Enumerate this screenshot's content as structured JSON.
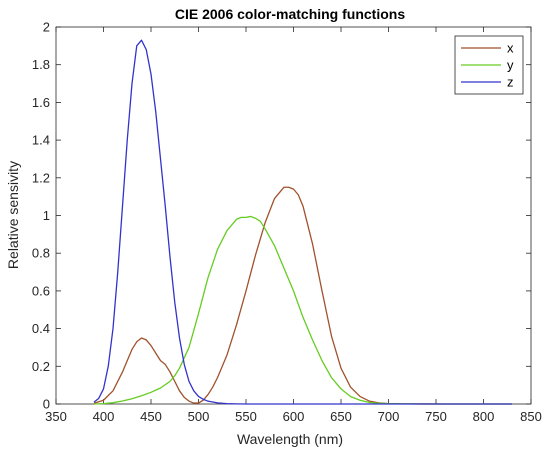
{
  "chart_data": {
    "type": "line",
    "title": "CIE 2006 color-matching functions",
    "xlabel": "Wavelength (nm)",
    "ylabel": "Relative sensivity",
    "xlim": [
      350,
      850
    ],
    "ylim": [
      0,
      2
    ],
    "xticks": [
      "350",
      "400",
      "450",
      "500",
      "550",
      "600",
      "650",
      "700",
      "750",
      "800",
      "850"
    ],
    "yticks": [
      "0",
      "0.2",
      "0.4",
      "0.6",
      "0.8",
      "1",
      "1.2",
      "1.4",
      "1.6",
      "1.8",
      "2"
    ],
    "grid": false,
    "legend_position": "top-right",
    "series": [
      {
        "name": "x",
        "color": "#a0522d",
        "x": [
          390,
          400,
          410,
          420,
          430,
          435,
          440,
          445,
          450,
          455,
          460,
          465,
          470,
          475,
          480,
          485,
          490,
          495,
          500,
          505,
          510,
          515,
          520,
          530,
          540,
          550,
          560,
          570,
          580,
          590,
          595,
          600,
          605,
          610,
          620,
          630,
          640,
          650,
          660,
          670,
          680,
          690,
          700,
          720,
          740,
          760,
          780,
          800,
          830
        ],
        "y": [
          0.004,
          0.02,
          0.07,
          0.17,
          0.29,
          0.33,
          0.35,
          0.34,
          0.31,
          0.27,
          0.23,
          0.21,
          0.17,
          0.12,
          0.07,
          0.035,
          0.015,
          0.005,
          0.005,
          0.02,
          0.05,
          0.09,
          0.14,
          0.26,
          0.42,
          0.6,
          0.79,
          0.96,
          1.09,
          1.15,
          1.15,
          1.14,
          1.11,
          1.05,
          0.85,
          0.6,
          0.36,
          0.19,
          0.09,
          0.04,
          0.015,
          0.006,
          0.002,
          0.0005,
          0.0002,
          0,
          0,
          0,
          0
        ]
      },
      {
        "name": "y",
        "color": "#66cc22",
        "x": [
          390,
          400,
          410,
          420,
          430,
          440,
          450,
          460,
          470,
          475,
          480,
          490,
          500,
          510,
          520,
          530,
          540,
          545,
          550,
          555,
          560,
          565,
          570,
          580,
          590,
          600,
          610,
          620,
          630,
          640,
          650,
          660,
          670,
          680,
          690,
          700,
          720,
          740,
          760,
          780,
          800,
          830
        ],
        "y": [
          0,
          0.002,
          0.007,
          0.016,
          0.028,
          0.044,
          0.062,
          0.085,
          0.12,
          0.15,
          0.19,
          0.3,
          0.48,
          0.67,
          0.82,
          0.92,
          0.98,
          0.99,
          0.99,
          0.995,
          0.985,
          0.97,
          0.93,
          0.84,
          0.72,
          0.6,
          0.46,
          0.34,
          0.23,
          0.14,
          0.08,
          0.04,
          0.02,
          0.008,
          0.004,
          0.002,
          0.0005,
          0,
          0,
          0,
          0,
          0
        ]
      },
      {
        "name": "z",
        "color": "#3333cc",
        "x": [
          390,
          395,
          400,
          405,
          410,
          415,
          420,
          425,
          430,
          435,
          440,
          445,
          450,
          455,
          460,
          465,
          470,
          475,
          480,
          485,
          490,
          495,
          500,
          505,
          510,
          520,
          530,
          540,
          550,
          560,
          580,
          600,
          650,
          700,
          750,
          800,
          830
        ],
        "y": [
          0.01,
          0.03,
          0.08,
          0.2,
          0.4,
          0.7,
          1.05,
          1.4,
          1.7,
          1.9,
          1.93,
          1.88,
          1.75,
          1.55,
          1.3,
          1.05,
          0.78,
          0.54,
          0.35,
          0.21,
          0.12,
          0.07,
          0.04,
          0.025,
          0.015,
          0.006,
          0.002,
          0.0005,
          0,
          0,
          0,
          0,
          0,
          0,
          0,
          0,
          0
        ]
      }
    ]
  }
}
